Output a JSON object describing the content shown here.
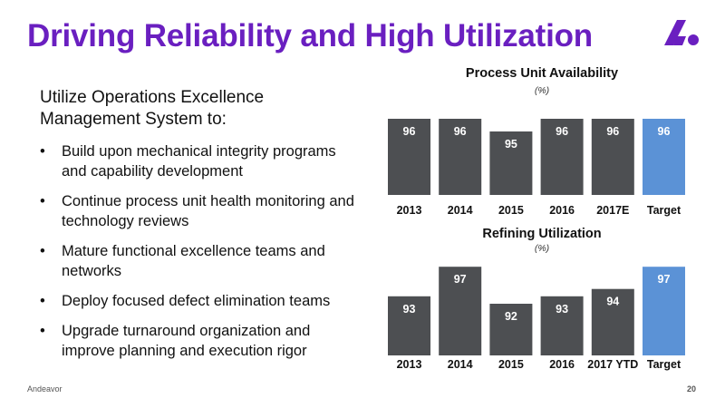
{
  "slide": {
    "title": "Driving Reliability and High Utilization",
    "intro": "Utilize Operations Excellence Management System to:",
    "bullet_glyph": "•",
    "bullets": [
      "Build upon mechanical integrity programs and capability development",
      "Continue process unit health monitoring and technology reviews",
      "Mature functional excellence teams and networks",
      "Deploy focused defect elimination teams",
      "Upgrade turnaround organization and improve planning and execution rigor"
    ],
    "footer_company": "Andeavor",
    "page_number": "20",
    "logo_icon": "andeavor-logo-icon"
  },
  "colors": {
    "title": "#6a1fc0",
    "bar_actual": "#4d4f52",
    "bar_target": "#5b92d6",
    "logo": "#6a1fc0"
  },
  "chart_data": [
    {
      "type": "bar",
      "title": "Process Unit Availability",
      "subtitle": "(%)",
      "categories": [
        "2013",
        "2014",
        "2015",
        "2016",
        "2017E",
        "Target"
      ],
      "values": [
        96,
        96,
        95,
        96,
        96,
        96
      ],
      "highlight_category": "Target",
      "ylim": [
        90,
        97.5
      ],
      "xlabel": "",
      "ylabel": "",
      "grid": false,
      "data_labels": true
    },
    {
      "type": "bar",
      "title": "Refining Utilization",
      "subtitle": "(%)",
      "categories": [
        "2013",
        "2014",
        "2015",
        "2016",
        "2017 YTD",
        "Target"
      ],
      "values": [
        93,
        97,
        92,
        93,
        94,
        97
      ],
      "highlight_category": "Target",
      "ylim": [
        85,
        98.5
      ],
      "xlabel": "",
      "ylabel": "",
      "grid": false,
      "data_labels": true
    }
  ]
}
